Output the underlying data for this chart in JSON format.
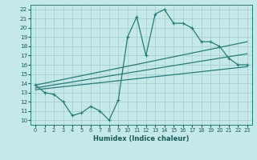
{
  "xlabel": "Humidex (Indice chaleur)",
  "bg_color": "#c5e8e8",
  "grid_color": "#a8d0d0",
  "line_color": "#2a7a7a",
  "xlim": [
    -0.5,
    23.5
  ],
  "ylim": [
    9.5,
    22.5
  ],
  "yticks": [
    10,
    11,
    12,
    13,
    14,
    15,
    16,
    17,
    18,
    19,
    20,
    21,
    22
  ],
  "xticks": [
    0,
    1,
    2,
    3,
    4,
    5,
    6,
    7,
    8,
    9,
    10,
    11,
    12,
    13,
    14,
    15,
    16,
    17,
    18,
    19,
    20,
    21,
    22,
    23
  ],
  "line1_x": [
    0,
    1,
    2,
    3,
    4,
    5,
    6,
    7,
    8,
    9,
    10,
    11,
    12,
    13,
    14,
    15,
    16,
    17,
    18,
    19,
    20,
    21,
    22,
    23
  ],
  "line1_y": [
    13.8,
    13.0,
    12.8,
    12.0,
    10.5,
    10.8,
    11.5,
    11.0,
    10.0,
    12.2,
    19.0,
    21.2,
    17.0,
    21.5,
    22.0,
    20.5,
    20.5,
    20.0,
    18.5,
    18.5,
    18.0,
    16.7,
    16.0,
    16.0
  ],
  "line2_x": [
    0,
    23
  ],
  "line2_y": [
    13.8,
    18.5
  ],
  "line3_x": [
    0,
    23
  ],
  "line3_y": [
    13.5,
    17.2
  ],
  "line4_x": [
    0,
    23
  ],
  "line4_y": [
    13.3,
    15.8
  ]
}
